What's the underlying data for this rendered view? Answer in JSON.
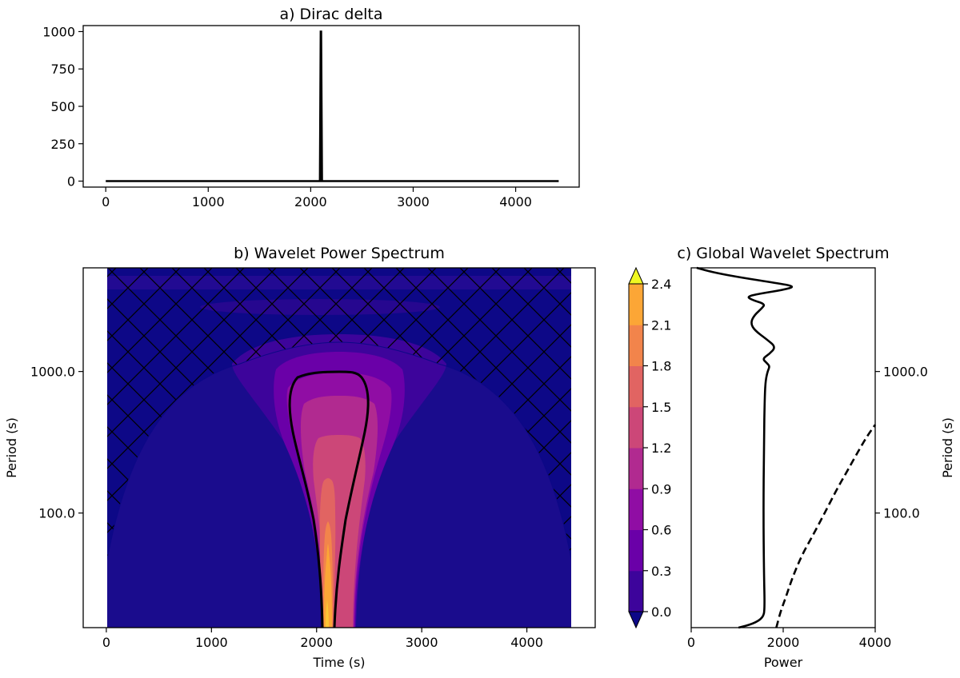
{
  "chart_data": [
    {
      "type": "line",
      "title": "a) Dirac delta",
      "xlabel": "",
      "ylabel": "",
      "xlim": [
        -220,
        4620
      ],
      "ylim": [
        -40,
        1040
      ],
      "xticks": [
        0,
        1000,
        2000,
        3000,
        4000
      ],
      "yticks": [
        0,
        250,
        500,
        750,
        1000
      ],
      "x": [
        0,
        2090,
        2098,
        2102,
        2110,
        4420
      ],
      "y": [
        0,
        0,
        1000,
        1000,
        0,
        0
      ],
      "line_color": "#000000"
    },
    {
      "type": "heatmap",
      "title": "b) Wavelet Power Spectrum",
      "xlabel": "Time (s)",
      "ylabel": "Period (s)",
      "xlim": [
        -220,
        4650
      ],
      "xticks": [
        0,
        1000,
        2000,
        3000,
        4000
      ],
      "y_scale": "log",
      "ylim": [
        15.5,
        5400
      ],
      "yticks": [
        100.0,
        1000.0
      ],
      "ytick_labels": [
        "100.0",
        "1000.0"
      ],
      "signal_time": 2100,
      "data_extent": [
        0,
        4420
      ],
      "cone_of_influence": "hatched region outside cone",
      "significance_contour": "thick black contour around peak",
      "colorbar": {
        "levels": [
          0.0,
          0.3,
          0.6,
          0.9,
          1.2,
          1.5,
          1.8,
          2.1,
          2.4
        ],
        "tick_labels": [
          "0.0",
          "0.3",
          "0.6",
          "0.9",
          "1.2",
          "1.5",
          "1.8",
          "2.1",
          "2.4"
        ],
        "colors": [
          "#0d0887",
          "#3d049b",
          "#6a00a8",
          "#900da4",
          "#b12a90",
          "#cc4778",
          "#e16462",
          "#f2844b",
          "#fca636",
          "#f0f921"
        ],
        "extend": "both"
      }
    },
    {
      "type": "line",
      "title": "c) Global Wavelet Spectrum",
      "xlabel": "Power",
      "ylabel": "Period (s)",
      "y_scale": "log",
      "ylim": [
        15.5,
        5400
      ],
      "xlim": [
        0,
        4000
      ],
      "xticks": [
        0,
        2000,
        4000
      ],
      "yticks": [
        100.0,
        1000.0
      ],
      "ytick_labels": [
        "100.0",
        "1000.0"
      ],
      "series": [
        {
          "style": "solid",
          "points": [
            [
              1030,
              15.5
            ],
            [
              1350,
              16.5
            ],
            [
              1560,
              18.2
            ],
            [
              1600,
              21
            ],
            [
              1580,
              40
            ],
            [
              1570,
              100
            ],
            [
              1580,
              300
            ],
            [
              1600,
              700
            ],
            [
              1620,
              870
            ],
            [
              1660,
              1000
            ],
            [
              1710,
              1090
            ],
            [
              1640,
              1150
            ],
            [
              1550,
              1230
            ],
            [
              1700,
              1330
            ],
            [
              1840,
              1490
            ],
            [
              1650,
              1680
            ],
            [
              1380,
              1950
            ],
            [
              1290,
              2200
            ],
            [
              1370,
              2500
            ],
            [
              1550,
              2820
            ],
            [
              1600,
              3000
            ],
            [
              1350,
              3180
            ],
            [
              1200,
              3380
            ],
            [
              1500,
              3550
            ],
            [
              2000,
              3770
            ],
            [
              2270,
              3990
            ],
            [
              1850,
              4220
            ],
            [
              1100,
              4600
            ],
            [
              500,
              5000
            ],
            [
              120,
              5400
            ]
          ]
        },
        {
          "style": "dashed",
          "points": [
            [
              1850,
              15.5
            ],
            [
              1940,
              20
            ],
            [
              2050,
              25
            ],
            [
              2200,
              35
            ],
            [
              2400,
              50
            ],
            [
              2650,
              70
            ],
            [
              2900,
              100
            ],
            [
              3180,
              150
            ],
            [
              3400,
              200
            ],
            [
              3650,
              280
            ],
            [
              3850,
              360
            ],
            [
              4000,
              420
            ]
          ]
        }
      ]
    }
  ]
}
